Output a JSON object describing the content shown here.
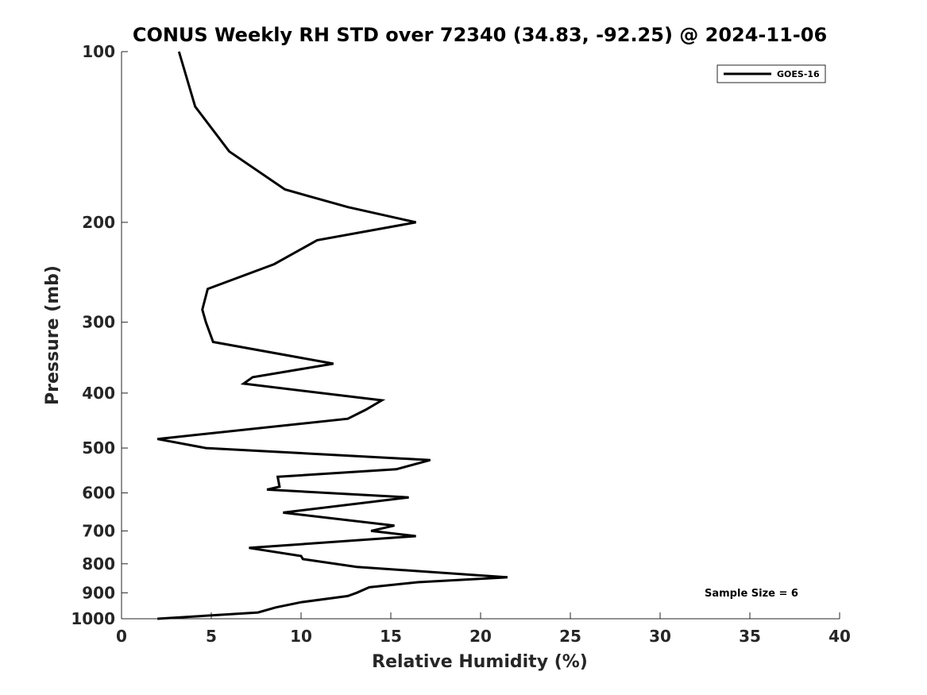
{
  "chart_data": {
    "type": "line",
    "title": "CONUS Weekly RH STD over 72340 (34.83, -92.25) @ 2024-11-06",
    "xlabel": "Relative Humidity (%)",
    "ylabel": "Pressure (mb)",
    "xlim": [
      0,
      40
    ],
    "ylim": [
      100,
      1000
    ],
    "y_scale": "log",
    "y_reversed": true,
    "x_ticks": [
      0,
      5,
      10,
      15,
      20,
      25,
      30,
      35,
      40
    ],
    "y_ticks": [
      100,
      200,
      300,
      400,
      500,
      600,
      700,
      800,
      900,
      1000
    ],
    "grid": false,
    "legend_position": "top-right",
    "annotation": "Sample Size = 6",
    "series": [
      {
        "name": "GOES-16",
        "color": "#000000",
        "x": [
          3.2,
          4.1,
          6.0,
          9.1,
          12.6,
          16.4,
          10.9,
          8.5,
          4.8,
          4.5,
          4.7,
          5.1,
          11.8,
          7.3,
          6.8,
          14.5,
          13.6,
          12.6,
          2.0,
          4.7,
          17.2,
          15.3,
          8.7,
          8.8,
          8.1,
          16.0,
          9.0,
          15.2,
          13.9,
          16.4,
          7.1,
          10.0,
          10.1,
          13.1,
          21.5,
          16.5,
          13.8,
          13.1,
          12.6,
          10.0,
          8.6,
          7.6,
          2.0
        ],
        "y": [
          100,
          125,
          150,
          175,
          188,
          200,
          215,
          237,
          262,
          285,
          300,
          325,
          355,
          375,
          385,
          412,
          428,
          444,
          482,
          500,
          525,
          545,
          562,
          585,
          592,
          611,
          650,
          685,
          700,
          715,
          750,
          775,
          785,
          810,
          845,
          862,
          880,
          900,
          912,
          935,
          955,
          975,
          1000
        ]
      }
    ]
  }
}
